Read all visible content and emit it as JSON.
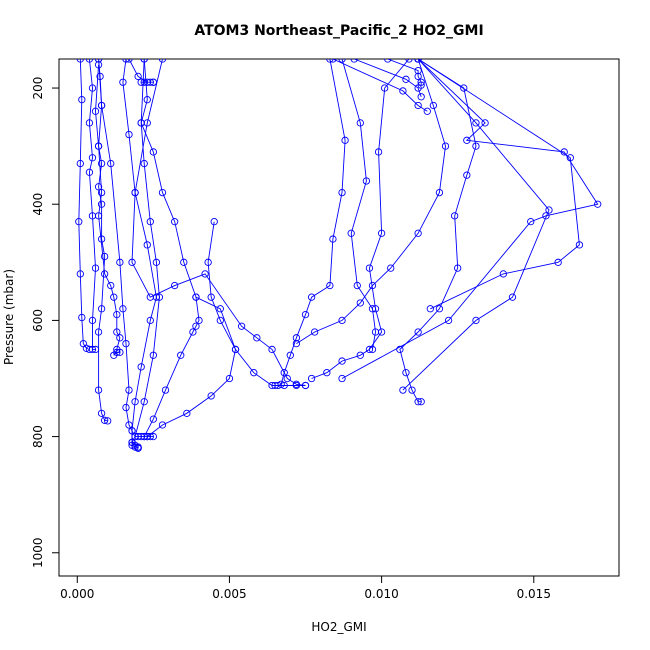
{
  "chart_data": {
    "type": "line",
    "title": "ATOM3 Northeast_Pacific_2 HO2_GMI",
    "xlabel": "HO2_GMI",
    "ylabel": "Pressure (mbar)",
    "xlim": [
      -0.0006,
      0.0178
    ],
    "ylim": [
      1040,
      150
    ],
    "y_reversed": true,
    "grid": false,
    "legend": "none",
    "marker": "open-circle",
    "color": "#0000ff",
    "x_ticks": [
      0.0,
      0.005,
      0.01,
      0.015
    ],
    "x_tick_labels": [
      "0.000",
      "0.005",
      "0.010",
      "0.015"
    ],
    "y_ticks": [
      200,
      400,
      600,
      800,
      1000
    ],
    "y_tick_labels": [
      "200",
      "400",
      "600",
      "800",
      "1000"
    ],
    "series": [
      {
        "x": [
          0.0001,
          0.00015,
          0.0001,
          5e-05,
          0.0001,
          0.00015,
          0.0002,
          0.0003,
          0.0004
        ],
        "y": [
          150,
          220,
          330,
          430,
          520,
          595,
          640,
          648,
          650
        ]
      },
      {
        "x": [
          0.0004,
          0.0005,
          0.0004,
          0.0005,
          0.0004,
          0.0005,
          0.0006,
          0.0005,
          0.0005,
          0.0006
        ],
        "y": [
          150,
          200,
          260,
          320,
          345,
          420,
          510,
          600,
          650,
          650
        ]
      },
      {
        "x": [
          0.0007,
          0.00075,
          0.0008,
          0.0007,
          0.0008,
          0.0007,
          0.0008,
          0.0008,
          0.0009,
          0.0008,
          0.0007,
          0.0007,
          0.0008,
          0.0009,
          0.001
        ],
        "y": [
          150,
          180,
          230,
          300,
          330,
          370,
          400,
          460,
          490,
          580,
          620,
          720,
          760,
          772,
          773
        ]
      },
      {
        "x": [
          0.0007,
          0.0006,
          0.0007,
          0.0008,
          0.0007,
          0.0009,
          0.0011,
          0.0012,
          0.0013,
          0.0013,
          0.0014,
          0.0013,
          0.0012,
          0.0013,
          0.0014
        ],
        "y": [
          160,
          240,
          300,
          380,
          420,
          520,
          540,
          560,
          590,
          620,
          630,
          650,
          660,
          655,
          655
        ]
      },
      {
        "x": [
          0.0007,
          0.0008,
          0.0011,
          0.0014,
          0.0015,
          0.0016,
          0.0017,
          0.0016,
          0.0017,
          0.0018,
          0.0019,
          0.002,
          0.0021,
          0.0022,
          0.0023,
          0.0024,
          0.0025
        ],
        "y": [
          150,
          230,
          330,
          500,
          580,
          640,
          720,
          750,
          780,
          790,
          800,
          800,
          800,
          800,
          800,
          800,
          800
        ]
      },
      {
        "x": [
          0.0016,
          0.0015,
          0.0017,
          0.0019,
          0.0023,
          0.0026,
          0.0024,
          0.0021,
          0.0019,
          0.0018,
          0.0018,
          0.0019,
          0.002,
          0.002
        ],
        "y": [
          150,
          190,
          280,
          380,
          470,
          560,
          600,
          680,
          740,
          790,
          810,
          815,
          820,
          820
        ]
      },
      {
        "x": [
          0.0022,
          0.0023,
          0.0021,
          0.0022,
          0.0024,
          0.0026,
          0.0027,
          0.0025,
          0.0022,
          0.0019,
          0.0018,
          0.0018,
          0.0019,
          0.002
        ],
        "y": [
          150,
          220,
          260,
          330,
          430,
          500,
          560,
          660,
          740,
          800,
          810,
          815,
          818,
          818
        ]
      },
      {
        "x": [
          0.0022,
          0.0021,
          0.0025,
          0.0028,
          0.0032,
          0.0035,
          0.0039,
          0.004,
          0.0039,
          0.0038,
          0.0034,
          0.0029,
          0.0025,
          0.0022
        ],
        "y": [
          150,
          260,
          310,
          380,
          430,
          500,
          560,
          600,
          610,
          620,
          660,
          720,
          770,
          800
        ]
      },
      {
        "x": [
          0.0017,
          0.002,
          0.0023,
          0.0025,
          0.0021,
          0.0022,
          0.0024,
          0.0025
        ],
        "y": [
          150,
          180,
          190,
          190,
          190,
          190,
          190,
          190
        ]
      },
      {
        "x": [
          0.0028,
          0.0023,
          0.0019,
          0.0018,
          0.0024,
          0.0032,
          0.0042,
          0.0054,
          0.0059,
          0.0064,
          0.0069,
          0.0072,
          0.0075
        ],
        "y": [
          150,
          260,
          380,
          500,
          560,
          540,
          520,
          610,
          630,
          650,
          700,
          710,
          712
        ]
      },
      {
        "x": [
          0.0045,
          0.0043,
          0.0044,
          0.0047,
          0.0052,
          0.0058,
          0.0064,
          0.0068,
          0.0072,
          0.0075
        ],
        "y": [
          430,
          500,
          560,
          600,
          650,
          690,
          712,
          712,
          712,
          712
        ]
      },
      {
        "x": [
          0.0039,
          0.0047,
          0.0052,
          0.005,
          0.0044,
          0.0036,
          0.0028,
          0.0023
        ],
        "y": [
          560,
          580,
          650,
          700,
          730,
          760,
          780,
          800
        ]
      },
      {
        "x": [
          0.0087,
          0.0093,
          0.0095,
          0.009,
          0.0092,
          0.0097,
          0.0098,
          0.0097
        ],
        "y": [
          150,
          260,
          360,
          450,
          540,
          580,
          620,
          650
        ]
      },
      {
        "x": [
          0.0083,
          0.0088,
          0.0087,
          0.0084,
          0.0083,
          0.0077,
          0.0075,
          0.0072,
          0.007,
          0.0068,
          0.0067,
          0.0066,
          0.0065
        ],
        "y": [
          150,
          290,
          380,
          460,
          540,
          560,
          590,
          630,
          660,
          690,
          710,
          712,
          712
        ]
      },
      {
        "x": [
          0.0109,
          0.0101,
          0.0099,
          0.01,
          0.0096,
          0.0098,
          0.01,
          0.0096,
          0.0093,
          0.0087,
          0.0082,
          0.0077
        ],
        "y": [
          150,
          200,
          310,
          450,
          510,
          580,
          620,
          650,
          660,
          670,
          690,
          700
        ]
      },
      {
        "x": [
          0.0112,
          0.0117,
          0.0121,
          0.0119,
          0.0112,
          0.0103,
          0.0097,
          0.0093,
          0.0087,
          0.0078,
          0.0072
        ],
        "y": [
          150,
          230,
          300,
          380,
          450,
          510,
          540,
          570,
          600,
          620,
          640
        ]
      },
      {
        "x": [
          0.0112,
          0.0127,
          0.0131,
          0.0128,
          0.0124,
          0.0125,
          0.0119,
          0.0112,
          0.0106,
          0.0108,
          0.011,
          0.0112,
          0.0113
        ],
        "y": [
          150,
          200,
          300,
          350,
          420,
          510,
          580,
          620,
          650,
          690,
          720,
          740,
          740
        ]
      },
      {
        "x": [
          0.0112,
          0.0134,
          0.0128,
          0.016,
          0.0171,
          0.0154,
          0.0149,
          0.0122,
          0.0087
        ],
        "y": [
          150,
          260,
          290,
          310,
          400,
          420,
          430,
          600,
          700
        ]
      },
      {
        "x": [
          0.0112,
          0.0162,
          0.0165,
          0.0158,
          0.014,
          0.0116
        ],
        "y": [
          150,
          320,
          470,
          500,
          520,
          580
        ]
      },
      {
        "x": [
          0.0112,
          0.0131,
          0.0155,
          0.0143,
          0.0131,
          0.0107
        ],
        "y": [
          150,
          260,
          410,
          560,
          600,
          720
        ]
      },
      {
        "x": [
          0.0091,
          0.0108,
          0.0112,
          0.0113
        ],
        "y": [
          150,
          185,
          200,
          215
        ]
      },
      {
        "x": [
          0.0102,
          0.0112,
          0.0112,
          0.0113,
          0.0113
        ],
        "y": [
          150,
          170,
          180,
          190,
          195
        ]
      },
      {
        "x": [
          0.0084,
          0.0107,
          0.0112,
          0.0115
        ],
        "y": [
          150,
          205,
          230,
          240
        ]
      }
    ]
  }
}
